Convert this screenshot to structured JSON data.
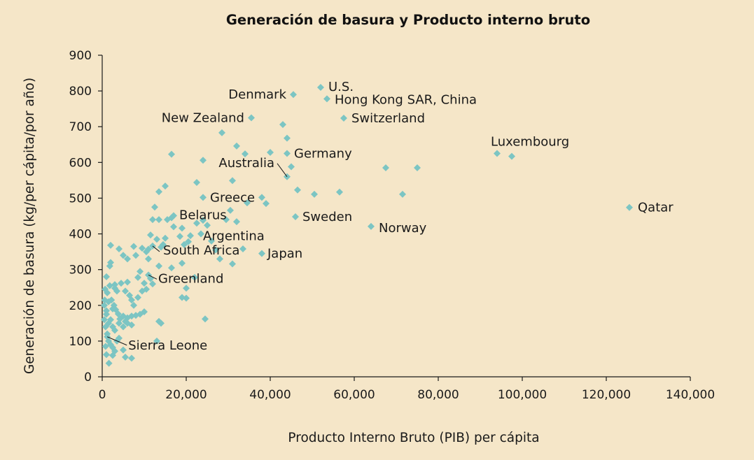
{
  "chart_data": {
    "type": "scatter",
    "title": "Generación de basura y Producto interno bruto",
    "xlabel": "Producto Interno Bruto (PIB) per cápita",
    "ylabel": "Generación de basura (kg/per cápita/por año)",
    "xlim": [
      0,
      140000
    ],
    "ylim": [
      0,
      900
    ],
    "x_ticks": [
      0,
      20000,
      40000,
      60000,
      80000,
      100000,
      120000,
      140000
    ],
    "x_tick_labels": [
      "0",
      "20,000",
      "40,000",
      "60,000",
      "80,000",
      "100,000",
      "120,000",
      "140,000"
    ],
    "y_ticks": [
      0,
      100,
      200,
      300,
      400,
      500,
      600,
      700,
      800,
      900
    ],
    "y_tick_labels": [
      "0",
      "100",
      "200",
      "300",
      "400",
      "500",
      "600",
      "700",
      "800",
      "900"
    ],
    "grid": false,
    "marker": "diamond",
    "series_color": "#7cc5c3",
    "labeled_points": [
      {
        "label": "U.S.",
        "x": 52000,
        "y": 810
      },
      {
        "label": "Denmark",
        "x": 45500,
        "y": 790
      },
      {
        "label": "Hong Kong SAR, China",
        "x": 53500,
        "y": 778
      },
      {
        "label": "New Zealand",
        "x": 35500,
        "y": 725
      },
      {
        "label": "Switzerland",
        "x": 57500,
        "y": 724
      },
      {
        "label": "Luxembourg",
        "x": 94000,
        "y": 625
      },
      {
        "label": "Germany",
        "x": 44000,
        "y": 625
      },
      {
        "label": "Australia",
        "x": 44000,
        "y": 560
      },
      {
        "label": "Greece",
        "x": 24000,
        "y": 502
      },
      {
        "label": "Qatar",
        "x": 125500,
        "y": 474
      },
      {
        "label": "Belarus",
        "x": 17000,
        "y": 451
      },
      {
        "label": "Sweden",
        "x": 46000,
        "y": 448
      },
      {
        "label": "Argentina",
        "x": 19000,
        "y": 416
      },
      {
        "label": "Norway",
        "x": 64000,
        "y": 421
      },
      {
        "label": "Japan",
        "x": 38000,
        "y": 345
      },
      {
        "label": "South Africa",
        "x": 12000,
        "y": 366
      },
      {
        "label": "Greenland",
        "x": 11000,
        "y": 285
      },
      {
        "label": "Sierra Leone",
        "x": 1200,
        "y": 112
      }
    ],
    "other_points": [
      [
        97500,
        617
      ],
      [
        67500,
        585
      ],
      [
        75000,
        585
      ],
      [
        71500,
        511
      ],
      [
        56500,
        517
      ],
      [
        50500,
        511
      ],
      [
        46500,
        523
      ],
      [
        45000,
        588
      ],
      [
        44000,
        668
      ],
      [
        43000,
        706
      ],
      [
        40000,
        628
      ],
      [
        39000,
        485
      ],
      [
        38000,
        502
      ],
      [
        32000,
        646
      ],
      [
        34000,
        624
      ],
      [
        28500,
        683
      ],
      [
        31000,
        549
      ],
      [
        24000,
        606
      ],
      [
        22500,
        544
      ],
      [
        16500,
        623
      ],
      [
        15000,
        534
      ],
      [
        13500,
        518
      ],
      [
        12500,
        475
      ],
      [
        12000,
        440
      ],
      [
        34500,
        487
      ],
      [
        29500,
        440
      ],
      [
        30500,
        466
      ],
      [
        33500,
        358
      ],
      [
        31000,
        316
      ],
      [
        28000,
        330
      ],
      [
        27000,
        355
      ],
      [
        26000,
        380
      ],
      [
        32000,
        434
      ],
      [
        25000,
        424
      ],
      [
        24000,
        438
      ],
      [
        23500,
        400
      ],
      [
        22500,
        430
      ],
      [
        21000,
        395
      ],
      [
        20500,
        378
      ],
      [
        19500,
        370
      ],
      [
        18500,
        393
      ],
      [
        17000,
        420
      ],
      [
        16500,
        445
      ],
      [
        15500,
        440
      ],
      [
        14500,
        370
      ],
      [
        15000,
        388
      ],
      [
        14000,
        363
      ],
      [
        13500,
        440
      ],
      [
        13000,
        385
      ],
      [
        11500,
        397
      ],
      [
        11000,
        357
      ],
      [
        10500,
        350
      ],
      [
        9500,
        360
      ],
      [
        11000,
        330
      ],
      [
        13500,
        310
      ],
      [
        16500,
        305
      ],
      [
        19000,
        318
      ],
      [
        22000,
        278
      ],
      [
        20000,
        248
      ],
      [
        19000,
        222
      ],
      [
        20000,
        220
      ],
      [
        24500,
        162
      ],
      [
        13500,
        155
      ],
      [
        14000,
        150
      ],
      [
        13000,
        100
      ],
      [
        12000,
        260
      ],
      [
        11500,
        275
      ],
      [
        10500,
        245
      ],
      [
        10000,
        262
      ],
      [
        9500,
        240
      ],
      [
        9000,
        295
      ],
      [
        8500,
        278
      ],
      [
        8000,
        340
      ],
      [
        7500,
        365
      ],
      [
        6000,
        330
      ],
      [
        5000,
        340
      ],
      [
        4000,
        358
      ],
      [
        2000,
        368
      ],
      [
        2000,
        320
      ],
      [
        1800,
        310
      ],
      [
        3000,
        258
      ],
      [
        3500,
        240
      ],
      [
        4500,
        262
      ],
      [
        5500,
        240
      ],
      [
        6000,
        265
      ],
      [
        6500,
        228
      ],
      [
        7500,
        200
      ],
      [
        7000,
        215
      ],
      [
        8000,
        172
      ],
      [
        9000,
        175
      ],
      [
        10000,
        182
      ],
      [
        8500,
        222
      ],
      [
        7000,
        145
      ],
      [
        6000,
        150
      ],
      [
        5000,
        140
      ],
      [
        4000,
        150
      ],
      [
        3000,
        130
      ],
      [
        2500,
        140
      ],
      [
        1500,
        150
      ],
      [
        2000,
        160
      ],
      [
        1000,
        175
      ],
      [
        500,
        200
      ],
      [
        700,
        245
      ],
      [
        1000,
        280
      ],
      [
        1500,
        210
      ],
      [
        2200,
        215
      ],
      [
        2800,
        200
      ],
      [
        3200,
        188
      ],
      [
        3800,
        176
      ],
      [
        4200,
        162
      ],
      [
        5000,
        170
      ],
      [
        5500,
        155
      ],
      [
        6000,
        165
      ],
      [
        7000,
        170
      ],
      [
        800,
        140
      ],
      [
        1200,
        120
      ],
      [
        1500,
        100
      ],
      [
        2000,
        90
      ],
      [
        2500,
        82
      ],
      [
        3000,
        72
      ],
      [
        3500,
        100
      ],
      [
        4000,
        108
      ],
      [
        5000,
        75
      ],
      [
        5500,
        55
      ],
      [
        7000,
        52
      ],
      [
        1000,
        62
      ],
      [
        1600,
        38
      ],
      [
        2500,
        60
      ],
      [
        800,
        85
      ],
      [
        500,
        160
      ],
      [
        1800,
        255
      ],
      [
        3000,
        248
      ],
      [
        1200,
        235
      ],
      [
        2500,
        190
      ],
      [
        1000,
        185
      ],
      [
        600,
        215
      ]
    ]
  }
}
